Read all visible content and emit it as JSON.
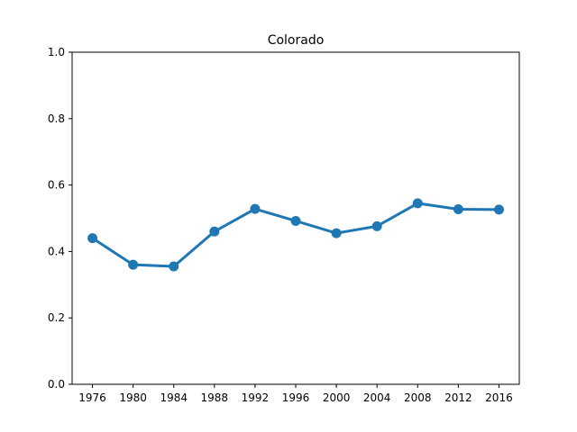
{
  "chart_data": {
    "type": "line",
    "title": "Colorado",
    "xlabel": "",
    "ylabel": "",
    "categories": [
      "1976",
      "1980",
      "1984",
      "1988",
      "1992",
      "1996",
      "2000",
      "2004",
      "2008",
      "2012",
      "2016"
    ],
    "series": [
      {
        "values": [
          0.44,
          0.36,
          0.355,
          0.46,
          0.528,
          0.492,
          0.455,
          0.476,
          0.545,
          0.527,
          0.526
        ],
        "color": "#1f77b4"
      }
    ],
    "ylim": [
      0,
      1.0
    ],
    "yticks": [
      "0.0",
      "0.2",
      "0.4",
      "0.6",
      "0.8",
      "1.0"
    ],
    "grid": false,
    "legend": "none"
  }
}
